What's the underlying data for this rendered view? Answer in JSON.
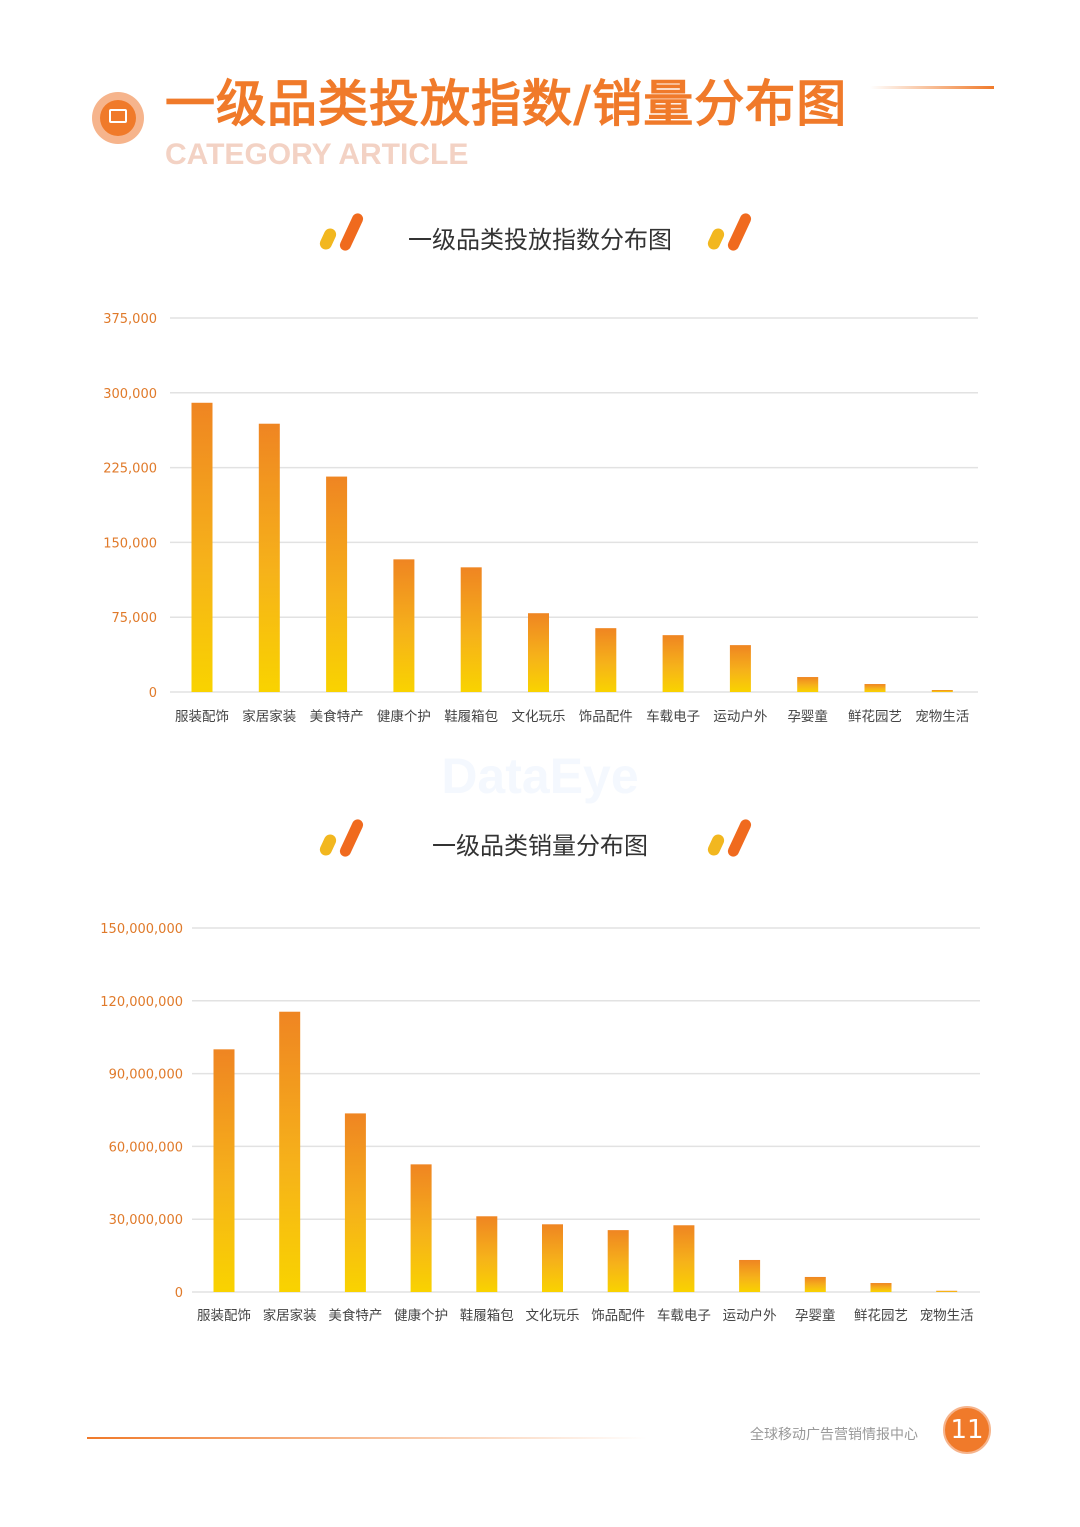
{
  "header": {
    "title": "一级品类投放指数/销量分布图",
    "subtitle_en": "CATEGORY ARTICLE"
  },
  "watermark": "DataEye",
  "colors": {
    "accent": "#f07a2a",
    "bar_top": "#ef8522",
    "bar_bottom": "#f9d300"
  },
  "chart_data": [
    {
      "type": "bar",
      "title": "一级品类投放指数分布图",
      "categories": [
        "服装配饰",
        "家居家装",
        "美食特产",
        "健康个护",
        "鞋履箱包",
        "文化玩乐",
        "饰品配件",
        "车载电子",
        "运动户外",
        "孕婴童",
        "鲜花园艺",
        "宠物生活"
      ],
      "values": [
        290000,
        269000,
        216000,
        133000,
        125000,
        79000,
        64000,
        57000,
        47000,
        15000,
        8000,
        2000
      ],
      "ylim": [
        0,
        375000
      ],
      "yticks": [
        0,
        75000,
        150000,
        225000,
        300000,
        375000
      ],
      "ytick_labels": [
        "0",
        "75,000",
        "150,000",
        "225,000",
        "300,000",
        "375,000"
      ],
      "grid": true
    },
    {
      "type": "bar",
      "title": "一级品类销量分布图",
      "categories": [
        "服装配饰",
        "家居家装",
        "美食特产",
        "健康个护",
        "鞋履箱包",
        "文化玩乐",
        "饰品配件",
        "车载电子",
        "运动户外",
        "孕婴童",
        "鲜花园艺",
        "宠物生活"
      ],
      "values": [
        100000000,
        115500000,
        73600000,
        52600000,
        31200000,
        27900000,
        25500000,
        27500000,
        13200000,
        6200000,
        3700000,
        500000
      ],
      "ylim": [
        0,
        150000000
      ],
      "yticks": [
        0,
        30000000,
        60000000,
        90000000,
        120000000,
        150000000
      ],
      "ytick_labels": [
        "0",
        "30,000,000",
        "60,000,000",
        "90,000,000",
        "120,000,000",
        "150,000,000"
      ],
      "grid": true
    }
  ],
  "footer": {
    "org": "全球移动广告营销情报中心",
    "page": "11"
  }
}
